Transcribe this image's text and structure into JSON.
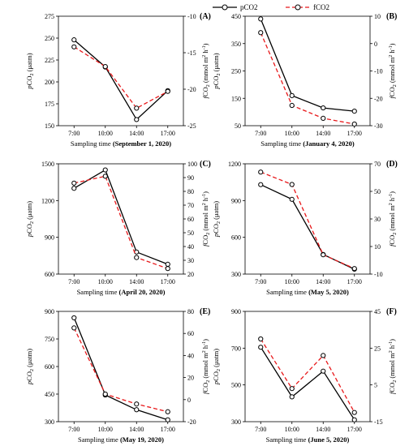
{
  "legend": {
    "pco2": "pCO2",
    "fco2": "fCO2"
  },
  "colors": {
    "pco2": "#000000",
    "fco2": "#e8181a"
  },
  "axis_labels": {
    "left_ylabel": "pCO2 (μatm)",
    "right_ylabel": "fCO2 (mmol m² h⁻¹)",
    "xlabel_prefix": "Sampling time"
  },
  "chart_data": [
    {
      "type": "line",
      "label": "(A)",
      "date": "(September 1, 2020)",
      "x": [
        "7:00",
        "10:00",
        "14:00",
        "17:00"
      ],
      "ylim_left": [
        150,
        275
      ],
      "yticks_left": [
        150,
        175,
        200,
        225,
        250,
        275
      ],
      "ylim_right": [
        -25,
        -10
      ],
      "yticks_right": [
        -25,
        -20,
        -15,
        -10
      ],
      "series": [
        {
          "name": "pCO2",
          "axis": "left",
          "values": [
            248,
            217,
            157,
            190
          ]
        },
        {
          "name": "fCO2",
          "axis": "right",
          "values": [
            -14.2,
            -16.9,
            -22.6,
            -20.3
          ]
        }
      ]
    },
    {
      "type": "line",
      "label": "(B)",
      "date": "(January 4, 2020)",
      "x": [
        "7:00",
        "10:00",
        "14:00",
        "17:00"
      ],
      "ylim_left": [
        50,
        450
      ],
      "yticks_left": [
        50,
        150,
        250,
        350,
        450
      ],
      "ylim_right": [
        -30,
        10
      ],
      "yticks_right": [
        -30,
        -20,
        -10,
        0,
        10
      ],
      "series": [
        {
          "name": "pCO2",
          "axis": "left",
          "values": [
            440,
            160,
            115,
            103
          ]
        },
        {
          "name": "fCO2",
          "axis": "right",
          "values": [
            4,
            -22.6,
            -27.3,
            -29.4
          ]
        }
      ]
    },
    {
      "type": "line",
      "label": "(C)",
      "date": "(April 20, 2020)",
      "x": [
        "7:00",
        "10:00",
        "14:00",
        "17:00"
      ],
      "ylim_left": [
        600,
        1500
      ],
      "yticks_left": [
        600,
        900,
        1200,
        1500
      ],
      "ylim_right": [
        20,
        100
      ],
      "yticks_right": [
        20,
        30,
        40,
        50,
        60,
        70,
        80,
        90,
        100
      ],
      "series": [
        {
          "name": "pCO2",
          "axis": "left",
          "values": [
            1300,
            1450,
            780,
            680
          ]
        },
        {
          "name": "fCO2",
          "axis": "right",
          "values": [
            86,
            91,
            32,
            24
          ]
        }
      ]
    },
    {
      "type": "line",
      "label": "(D)",
      "date": "(May 5, 2020)",
      "x": [
        "7:00",
        "10:00",
        "14:00",
        "17:00"
      ],
      "ylim_left": [
        300,
        1200
      ],
      "yticks_left": [
        300,
        600,
        900,
        1200
      ],
      "ylim_right": [
        -10,
        70
      ],
      "yticks_right": [
        -10,
        10,
        30,
        50,
        70
      ],
      "series": [
        {
          "name": "pCO2",
          "axis": "left",
          "values": [
            1030,
            910,
            460,
            340
          ]
        },
        {
          "name": "fCO2",
          "axis": "right",
          "values": [
            64,
            55,
            4,
            -6
          ]
        }
      ]
    },
    {
      "type": "line",
      "label": "(E)",
      "date": "(May 19, 2020)",
      "x": [
        "7:00",
        "10:00",
        "14:00",
        "17:00"
      ],
      "ylim_left": [
        300,
        900
      ],
      "yticks_left": [
        300,
        450,
        600,
        750,
        900
      ],
      "ylim_right": [
        -20,
        80
      ],
      "yticks_right": [
        -20,
        0,
        20,
        40,
        60,
        80
      ],
      "series": [
        {
          "name": "pCO2",
          "axis": "left",
          "values": [
            865,
            445,
            365,
            310
          ]
        },
        {
          "name": "fCO2",
          "axis": "right",
          "values": [
            65,
            5,
            -4,
            -11
          ]
        }
      ]
    },
    {
      "type": "line",
      "label": "(F)",
      "date": "(June 5, 2020)",
      "x": [
        "7:00",
        "10:00",
        "14:00",
        "17:00"
      ],
      "ylim_left": [
        300,
        900
      ],
      "yticks_left": [
        300,
        500,
        700,
        900
      ],
      "ylim_right": [
        -15,
        45
      ],
      "yticks_right": [
        -15,
        5,
        25,
        45
      ],
      "series": [
        {
          "name": "pCO2",
          "axis": "left",
          "values": [
            705,
            435,
            575,
            310
          ]
        },
        {
          "name": "fCO2",
          "axis": "right",
          "values": [
            30,
            3,
            21,
            -10
          ]
        }
      ]
    }
  ]
}
